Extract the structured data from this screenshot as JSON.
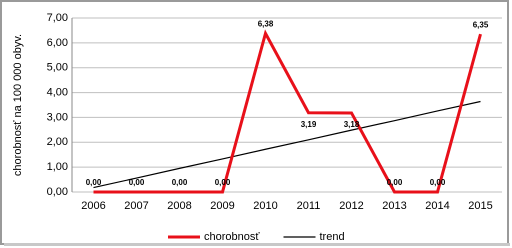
{
  "chart_data": {
    "type": "line",
    "y_label": "chorobnosť na 100 000 obyv.",
    "categories": [
      "2006",
      "2007",
      "2008",
      "2009",
      "2010",
      "2011",
      "2012",
      "2013",
      "2014",
      "2015"
    ],
    "series": [
      {
        "name": "chorobnosť",
        "color": "#e8101a",
        "values": [
          0,
          0,
          0,
          0,
          6.38,
          3.19,
          3.18,
          0,
          0,
          6.35
        ],
        "value_labels": [
          "0,00",
          "0,00",
          "0,00",
          "0,00",
          "6,38",
          "3,19",
          "3,18",
          "0,00",
          "0,00",
          "6,35"
        ]
      },
      {
        "name": "trend",
        "color": "#000000",
        "values": [
          0.18,
          0.56,
          0.95,
          1.33,
          1.72,
          2.1,
          2.49,
          2.87,
          3.26,
          3.64
        ]
      }
    ],
    "ylim": [
      0,
      7
    ],
    "yticks": [
      {
        "value": 0,
        "label": "0,00"
      },
      {
        "value": 1,
        "label": "1,00"
      },
      {
        "value": 2,
        "label": "2,00"
      },
      {
        "value": 3,
        "label": "3,00"
      },
      {
        "value": 4,
        "label": "4,00"
      },
      {
        "value": 5,
        "label": "5,00"
      },
      {
        "value": 6,
        "label": "6,00"
      },
      {
        "value": 7,
        "label": "7,00"
      }
    ],
    "grid": true,
    "legend": "bottom"
  }
}
